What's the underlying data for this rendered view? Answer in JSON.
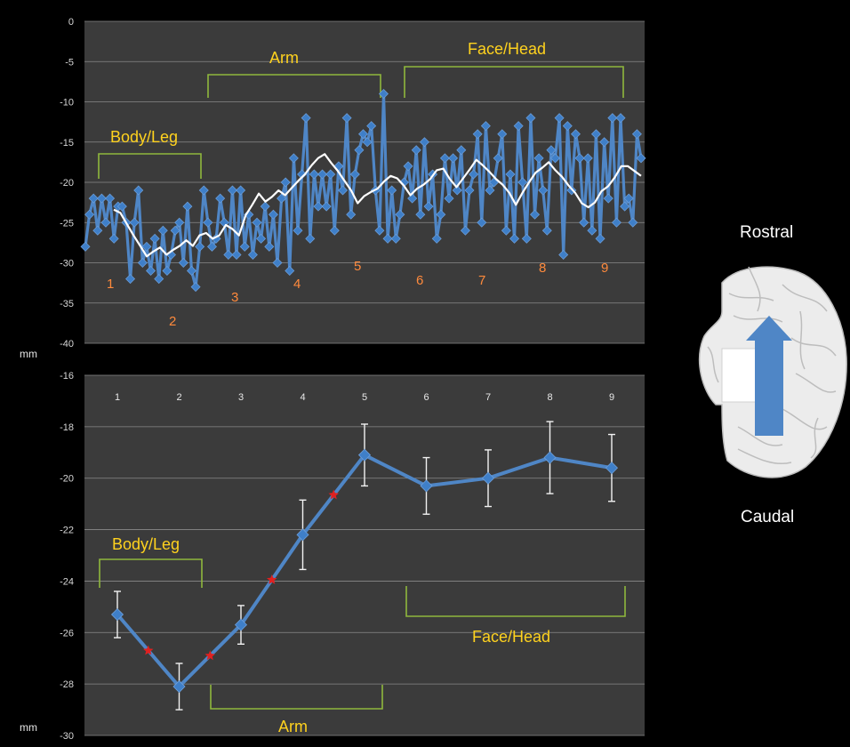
{
  "colors": {
    "plot_bg": "#3b3b3b",
    "grid": "#8a8a8a",
    "series": "#4f86c6",
    "marker": "#3f7fc8",
    "average": "#ffffff",
    "bracket": "#8fb83c",
    "region_text": "#ffd21e",
    "segment_text": "#ff8a3c",
    "star": "#e02020",
    "errorbar": "#f2f2f2"
  },
  "chart_data": [
    {
      "type": "line",
      "ylabel": "mm",
      "ylim": [
        -40,
        0
      ],
      "yticks": [
        0,
        -5,
        -10,
        -15,
        -20,
        -25,
        -30,
        -35,
        -40
      ],
      "grid": true,
      "series": [
        {
          "values": [
            -28,
            -24,
            -22,
            -26,
            -22,
            -25,
            -22,
            -27,
            -23,
            -23,
            -25,
            -32,
            -25,
            -21,
            -30,
            -28,
            -31,
            -27,
            -32,
            -26,
            -31,
            -29,
            -26,
            -25,
            -30,
            -23,
            -31,
            -33,
            -28,
            -21,
            -25,
            -28,
            -27,
            -22,
            -25,
            -29,
            -21,
            -29,
            -21,
            -28,
            -24,
            -29,
            -25,
            -27,
            -23,
            -28,
            -24,
            -30,
            -22,
            -20,
            -31,
            -17,
            -26,
            -19,
            -12,
            -27,
            -19,
            -23,
            -19,
            -23,
            -19,
            -26,
            -18,
            -21,
            -12,
            -24,
            -19,
            -16,
            -14,
            -15,
            -13,
            -21,
            -26,
            -9,
            -27,
            -21,
            -27,
            -24,
            -20,
            -18,
            -22,
            -16,
            -24,
            -15,
            -23,
            -19,
            -27,
            -24,
            -17,
            -22,
            -17,
            -21,
            -16,
            -26,
            -21,
            -19,
            -14,
            -25,
            -13,
            -21,
            -20,
            -17,
            -14,
            -26,
            -19,
            -27,
            -13,
            -20,
            -27,
            -12,
            -24,
            -17,
            -21,
            -26,
            -16,
            -17,
            -12,
            -29,
            -13,
            -21,
            -14,
            -17,
            -25,
            -17,
            -26,
            -14,
            -27,
            -15,
            -22,
            -12,
            -25,
            -12,
            -23,
            -22,
            -25,
            -14,
            -17
          ]
        },
        {
          "values": [
            -23.4,
            -23.8,
            -25.2,
            -26.6,
            -27.9,
            -29.2,
            -28.6,
            -28.1,
            -29,
            -28.4,
            -27.9,
            -27.2,
            -27.9,
            -26.6,
            -26.3,
            -27,
            -26.6,
            -25.3,
            -25.8,
            -26.6,
            -24.1,
            -22.8,
            -21.4,
            -22.4,
            -21.8,
            -21,
            -21.6,
            -20.7,
            -19.8,
            -19,
            -17.9,
            -17,
            -16.5,
            -17.6,
            -18.6,
            -19.8,
            -21,
            -22.6,
            -21.7,
            -21.2,
            -20.8,
            -19.9,
            -19.2,
            -19.5,
            -20.4,
            -21.6,
            -20.8,
            -20.3,
            -19.6,
            -18.5,
            -18.3,
            -19.6,
            -20.6,
            -19.5,
            -18.4,
            -17.2,
            -17.9,
            -18.7,
            -19.6,
            -20.3,
            -21.3,
            -22.8,
            -21.3,
            -20,
            -18.8,
            -18.2,
            -17.5,
            -18.5,
            -19.3,
            -20.4,
            -21.3,
            -22.6,
            -23.1,
            -22.5,
            -21.1,
            -20.5,
            -19.4,
            -18,
            -18,
            -18.6,
            -19.2
          ]
        }
      ],
      "annotations": {
        "regions": [
          "Body/Leg",
          "Arm",
          "Face/Head"
        ],
        "segments": [
          "1",
          "2",
          "3",
          "4",
          "5",
          "6",
          "7",
          "8",
          "9"
        ]
      }
    },
    {
      "type": "line",
      "ylabel": "mm",
      "ylim": [
        -30,
        -16
      ],
      "yticks": [
        -16,
        -18,
        -20,
        -22,
        -24,
        -26,
        -28,
        -30
      ],
      "grid": true,
      "categories": [
        "1",
        "2",
        "3",
        "4",
        "5",
        "6",
        "7",
        "8",
        "9"
      ],
      "series": [
        {
          "values": [
            -25.3,
            -28.1,
            -25.7,
            -22.2,
            -19.1,
            -20.3,
            -20,
            -19.2,
            -19.6
          ],
          "errors": [
            0.9,
            0.9,
            0.75,
            1.35,
            1.2,
            1.1,
            1.1,
            1.4,
            1.3
          ]
        }
      ],
      "significance_between": [
        [
          1,
          2
        ],
        [
          2,
          3
        ],
        [
          3,
          4
        ],
        [
          4,
          5
        ]
      ],
      "annotations": {
        "regions": [
          "Body/Leg",
          "Arm",
          "Face/Head"
        ]
      }
    }
  ],
  "side_panel": {
    "top_label": "Rostral",
    "bottom_label": "Caudal"
  }
}
